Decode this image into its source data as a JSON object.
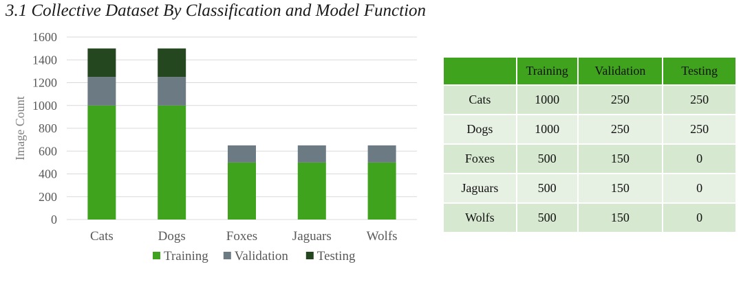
{
  "title": "3.1 Collective Dataset By Classification and Model Function",
  "chart_data": {
    "type": "bar",
    "stacked": true,
    "categories": [
      "Cats",
      "Dogs",
      "Foxes",
      "Jaguars",
      "Wolfs"
    ],
    "series": [
      {
        "name": "Training",
        "values": [
          1000,
          1000,
          500,
          500,
          500
        ],
        "color": "#3fa31e"
      },
      {
        "name": "Validation",
        "values": [
          250,
          250,
          150,
          150,
          150
        ],
        "color": "#6c7a84"
      },
      {
        "name": "Testing",
        "values": [
          250,
          250,
          0,
          0,
          0
        ],
        "color": "#254720"
      }
    ],
    "ylabel": "Image Count",
    "ylim": [
      0,
      1600
    ],
    "yticks": [
      0,
      200,
      400,
      600,
      800,
      1000,
      1200,
      1400,
      1600
    ],
    "grid": true,
    "legend_position": "bottom"
  },
  "table": {
    "headers": [
      "",
      "Training",
      "Validation",
      "Testing"
    ],
    "rows": [
      [
        "Cats",
        "1000",
        "250",
        "250"
      ],
      [
        "Dogs",
        "1000",
        "250",
        "250"
      ],
      [
        "Foxes",
        "500",
        "150",
        "0"
      ],
      [
        "Jaguars",
        "500",
        "150",
        "0"
      ],
      [
        "Wolfs",
        "500",
        "150",
        "0"
      ]
    ]
  }
}
